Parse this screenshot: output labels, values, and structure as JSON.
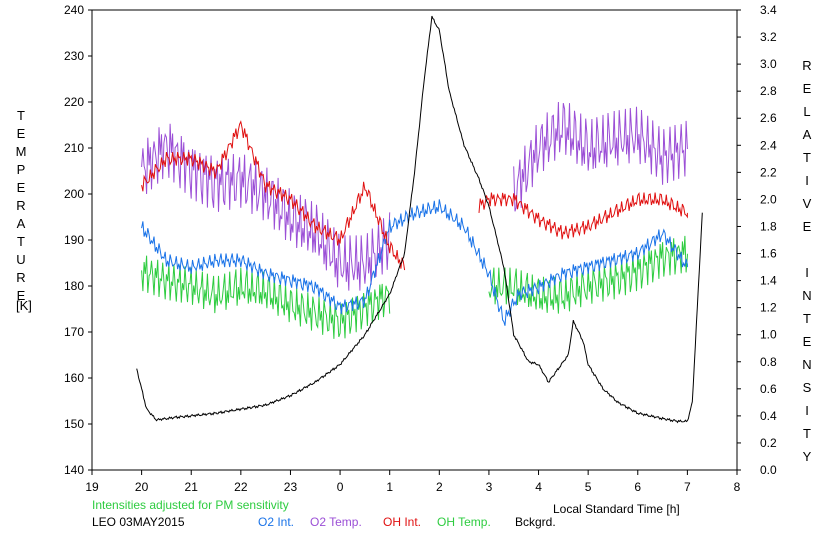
{
  "chart_data": {
    "type": "line",
    "left_axis": {
      "label": "TEMPERATURE",
      "unit": "[K]",
      "ylim": [
        140,
        240
      ],
      "ticks": [
        "140",
        "150",
        "160",
        "170",
        "180",
        "190",
        "200",
        "210",
        "220",
        "230",
        "240"
      ]
    },
    "right_axis": {
      "label": "RELATIVE INTENSITY",
      "ylim": [
        0,
        3.4
      ],
      "ticks": [
        "0.0",
        "0.2",
        "0.4",
        "0.6",
        "0.8",
        "1.0",
        "1.2",
        "1.4",
        "1.6",
        "1.8",
        "2.0",
        "2.2",
        "2.4",
        "2.6",
        "2.8",
        "3.0",
        "3.2",
        "3.4"
      ]
    },
    "x_axis": {
      "label": "Local Standard Time [h]",
      "range": [
        19,
        8
      ],
      "ticks": [
        "19",
        "20",
        "21",
        "22",
        "23",
        "0",
        "1",
        "2",
        "3",
        "4",
        "5",
        "6",
        "7",
        "8"
      ]
    },
    "note": "Intensities adjusted for PM sensitivity",
    "station_date": "LEO 03MAY2015",
    "legend": [
      {
        "key": "o2_int",
        "label": "O2 Int.",
        "color": "#1a73e8"
      },
      {
        "key": "o2_temp",
        "label": "O2 Temp.",
        "color": "#9b4fd6"
      },
      {
        "key": "oh_int",
        "label": "OH Int.",
        "color": "#e01010"
      },
      {
        "key": "oh_temp",
        "label": "OH Temp.",
        "color": "#2ecc40"
      },
      {
        "key": "bckgrd",
        "label": "Bckgrd.",
        "color": "#000000"
      }
    ],
    "series": [
      {
        "key": "o2_temp",
        "axis": "left",
        "color": "#9b4fd6",
        "x": [
          20.0,
          20.5,
          21.0,
          21.5,
          22.0,
          22.5,
          23.0,
          23.5,
          0.0,
          0.5,
          1.0,
          3.5,
          4.0,
          4.5,
          5.0,
          5.5,
          6.0,
          6.5,
          7.0
        ],
        "y": [
          205,
          210,
          205,
          202,
          203,
          200,
          195,
          192,
          185,
          185,
          190,
          200,
          210,
          215,
          210,
          212,
          213,
          208,
          210
        ]
      },
      {
        "key": "oh_temp",
        "axis": "left",
        "color": "#2ecc40",
        "x": [
          20.0,
          20.5,
          21.0,
          21.5,
          22.0,
          22.5,
          23.0,
          23.5,
          0.0,
          0.5,
          1.0,
          3.0,
          3.5,
          4.0,
          4.5,
          5.0,
          5.5,
          6.0,
          6.5,
          7.0
        ],
        "y": [
          183,
          181,
          180,
          178,
          180,
          179,
          176,
          174,
          172,
          175,
          178,
          180,
          180,
          178,
          178,
          180,
          181,
          183,
          186,
          187
        ]
      },
      {
        "key": "o2_int",
        "axis": "right",
        "color": "#1a73e8",
        "x": [
          20.0,
          20.5,
          21.0,
          21.5,
          22.0,
          22.5,
          23.0,
          23.5,
          0.0,
          0.5,
          1.0,
          1.5,
          2.0,
          2.5,
          3.0,
          3.3,
          3.6,
          4.0,
          4.5,
          5.0,
          5.5,
          6.0,
          6.5,
          7.0
        ],
        "y": [
          1.8,
          1.55,
          1.5,
          1.55,
          1.55,
          1.45,
          1.4,
          1.35,
          1.2,
          1.25,
          1.8,
          1.9,
          1.95,
          1.8,
          1.45,
          1.1,
          1.3,
          1.35,
          1.45,
          1.5,
          1.55,
          1.6,
          1.75,
          1.5
        ]
      },
      {
        "key": "oh_int",
        "axis": "right",
        "color": "#e01010",
        "x": [
          20.0,
          20.5,
          21.0,
          21.5,
          22.0,
          22.5,
          23.0,
          23.5,
          0.0,
          0.5,
          1.0,
          1.3,
          2.8,
          3.0,
          3.5,
          4.0,
          4.5,
          5.0,
          5.5,
          6.0,
          6.5,
          7.0
        ],
        "y": [
          2.1,
          2.3,
          2.3,
          2.2,
          2.55,
          2.1,
          2.0,
          1.8,
          1.7,
          2.1,
          1.65,
          1.5,
          1.95,
          2.0,
          2.0,
          1.85,
          1.75,
          1.8,
          1.9,
          2.0,
          2.0,
          1.9
        ]
      },
      {
        "key": "bckgrd",
        "axis": "right",
        "color": "#000000",
        "x": [
          19.9,
          20.1,
          20.3,
          20.7,
          21.0,
          21.5,
          22.0,
          22.5,
          23.0,
          23.5,
          0.0,
          0.5,
          1.0,
          1.3,
          1.5,
          1.7,
          1.85,
          2.0,
          2.2,
          2.5,
          2.8,
          3.0,
          3.3,
          3.5,
          3.8,
          4.0,
          4.2,
          4.4,
          4.6,
          4.7,
          4.9,
          5.0,
          5.3,
          5.6,
          6.0,
          6.5,
          6.8,
          7.0,
          7.1,
          7.2,
          7.3
        ],
        "y": [
          0.75,
          0.45,
          0.37,
          0.39,
          0.4,
          0.42,
          0.45,
          0.48,
          0.55,
          0.65,
          0.78,
          1.0,
          1.3,
          1.6,
          2.2,
          2.9,
          3.35,
          3.25,
          2.8,
          2.4,
          2.15,
          1.95,
          1.5,
          1.0,
          0.8,
          0.78,
          0.65,
          0.75,
          0.85,
          1.1,
          0.95,
          0.78,
          0.6,
          0.5,
          0.42,
          0.38,
          0.36,
          0.36,
          0.5,
          1.2,
          1.9
        ]
      }
    ]
  }
}
